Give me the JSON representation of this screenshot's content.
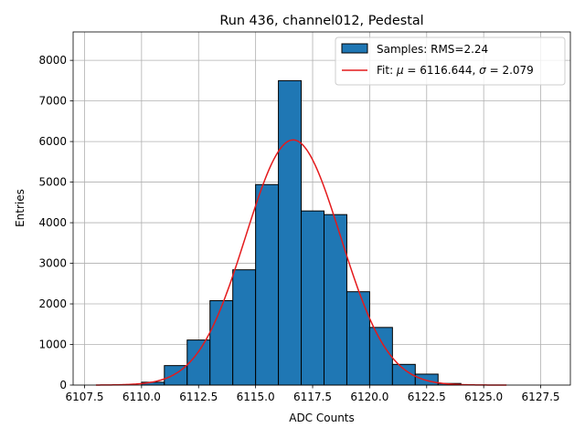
{
  "chart_data": {
    "type": "bar",
    "title": "Run 436, channel012, Pedestal",
    "xlabel": "ADC Counts",
    "ylabel": "Entries",
    "xlim": [
      6107.0,
      6128.8
    ],
    "ylim": [
      0,
      8700
    ],
    "grid": true,
    "legend_position": "top-right",
    "xticks": [
      6107.5,
      6110.0,
      6112.5,
      6115.0,
      6117.5,
      6120.0,
      6122.5,
      6125.0,
      6127.5
    ],
    "xtick_labels": [
      "6107.5",
      "6110.0",
      "6112.5",
      "6115.0",
      "6117.5",
      "6120.0",
      "6122.5",
      "6125.0",
      "6127.5"
    ],
    "yticks": [
      0,
      1000,
      2000,
      3000,
      4000,
      5000,
      6000,
      7000,
      8000
    ],
    "ytick_labels": [
      "0",
      "1000",
      "2000",
      "3000",
      "4000",
      "5000",
      "6000",
      "7000",
      "8000"
    ],
    "bin_edges": [
      6110,
      6111,
      6112,
      6113,
      6114,
      6115,
      6116,
      6117,
      6118,
      6119,
      6120,
      6121,
      6122,
      6123,
      6124
    ],
    "values": [
      70,
      480,
      1110,
      2080,
      2840,
      4940,
      7500,
      4290,
      4200,
      2300,
      1420,
      510,
      270,
      40
    ],
    "series": [
      {
        "name": "Samples: RMS=2.24",
        "kind": "histogram",
        "color": "#1f77b4",
        "edgecolor": "#000000"
      },
      {
        "name": "Fit: μ = 6116.644, σ = 2.079",
        "legend_prefix": "Fit: ",
        "legend_mu": "μ",
        "legend_mid1": " = 6116.644, ",
        "legend_sigma": "σ",
        "legend_mid2": " = 2.079",
        "kind": "gaussian-fit",
        "color": "#e41a1c",
        "mu": 6116.644,
        "sigma": 2.079,
        "amplitude": 6040,
        "x_range": [
          6108,
          6126
        ]
      }
    ]
  }
}
